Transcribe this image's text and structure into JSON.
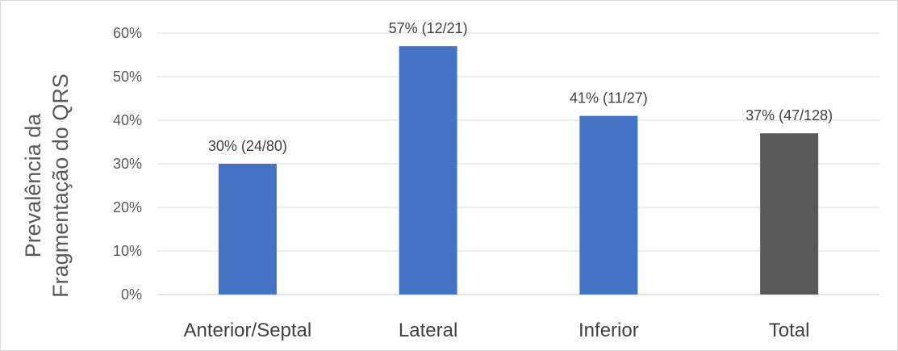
{
  "chart_data": {
    "type": "bar",
    "categories": [
      "Anterior/Septal",
      "Lateral",
      "Inferior",
      "Total"
    ],
    "values": [
      30,
      57,
      41,
      37
    ],
    "data_labels": [
      "30% (24/80)",
      "57% (12/21)",
      "41% (11/27)",
      "37% (47/128)"
    ],
    "bar_colors": [
      "#4472c4",
      "#4472c4",
      "#4472c4",
      "#595959"
    ],
    "ylabel_lines": [
      "Prevalência da",
      "Fragmentação do QRS"
    ],
    "xlabel": "",
    "title": "",
    "ylim": [
      0,
      60
    ],
    "y_ticks": [
      0,
      10,
      20,
      30,
      40,
      50,
      60
    ],
    "y_tick_labels": [
      "0%",
      "10%",
      "20%",
      "30%",
      "40%",
      "50%",
      "60%"
    ],
    "grid": true,
    "legend": "none"
  }
}
